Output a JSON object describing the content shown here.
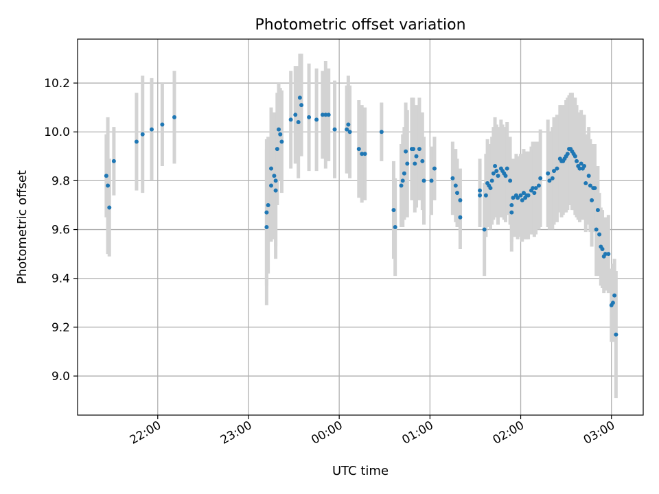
{
  "chart_data": {
    "type": "scatter",
    "title": "Photometric offset variation",
    "xlabel": "UTC time",
    "ylabel": "Photometric offset",
    "x_unit": "hours (UTC, 24h wrap; 00:00 shown as 24.0)",
    "xlim": [
      "21:07",
      "03:21"
    ],
    "ylim": [
      8.84,
      10.38
    ],
    "x_ticks": [
      "22:00",
      "23:00",
      "00:00",
      "01:00",
      "02:00",
      "03:00"
    ],
    "y_ticks": [
      "9.0",
      "9.2",
      "9.4",
      "9.6",
      "9.8",
      "10.0",
      "10.2"
    ],
    "grid": true,
    "colors": {
      "points": "#1f77b4",
      "errorbars": "#d3d3d3",
      "grid": "#b0b0b0"
    },
    "series": [
      {
        "values": [
          [
            "21:26",
            9.82,
            0.17
          ],
          [
            "21:27",
            9.78,
            0.28
          ],
          [
            "21:28",
            9.69,
            0.2
          ],
          [
            "21:31",
            9.88,
            0.14
          ],
          [
            "21:46",
            9.96,
            0.2
          ],
          [
            "21:50",
            9.99,
            0.24
          ],
          [
            "21:56",
            10.01,
            0.21
          ],
          [
            "22:03",
            10.03,
            0.17
          ],
          [
            "22:11",
            10.06,
            0.19
          ],
          [
            "23:12",
            9.61,
            0.32
          ],
          [
            "23:12",
            9.67,
            0.3
          ],
          [
            "23:13",
            9.7,
            0.28
          ],
          [
            "23:15",
            9.85,
            0.25
          ],
          [
            "23:15",
            9.78,
            0.23
          ],
          [
            "23:17",
            9.82,
            0.26
          ],
          [
            "23:18",
            9.8,
            0.27
          ],
          [
            "23:18",
            9.76,
            0.28
          ],
          [
            "23:19",
            9.93,
            0.23
          ],
          [
            "23:20",
            10.01,
            0.19
          ],
          [
            "23:21",
            9.99,
            0.19
          ],
          [
            "23:22",
            9.96,
            0.21
          ],
          [
            "23:28",
            10.05,
            0.2
          ],
          [
            "23:31",
            10.07,
            0.2
          ],
          [
            "23:33",
            10.04,
            0.23
          ],
          [
            "23:34",
            10.14,
            0.18
          ],
          [
            "23:35",
            10.11,
            0.21
          ],
          [
            "23:40",
            10.06,
            0.22
          ],
          [
            "23:45",
            10.05,
            0.21
          ],
          [
            "23:49",
            10.07,
            0.18
          ],
          [
            "23:51",
            10.07,
            0.22
          ],
          [
            "23:53",
            10.07,
            0.19
          ],
          [
            "23:57",
            10.01,
            0.2
          ],
          [
            "00:05",
            10.01,
            0.18
          ],
          [
            "00:06",
            10.03,
            0.2
          ],
          [
            "00:07",
            10.0,
            0.19
          ],
          [
            "00:13",
            9.93,
            0.2
          ],
          [
            "00:15",
            9.91,
            0.2
          ],
          [
            "00:17",
            9.91,
            0.19
          ],
          [
            "00:28",
            10.0,
            0.12
          ],
          [
            "00:36",
            9.68,
            0.2
          ],
          [
            "00:37",
            9.61,
            0.2
          ],
          [
            "00:41",
            9.78,
            0.17
          ],
          [
            "00:42",
            9.8,
            0.19
          ],
          [
            "00:43",
            9.83,
            0.19
          ],
          [
            "00:44",
            9.92,
            0.2
          ],
          [
            "00:45",
            9.87,
            0.22
          ],
          [
            "00:48",
            9.93,
            0.21
          ],
          [
            "00:49",
            9.93,
            0.21
          ],
          [
            "00:50",
            9.87,
            0.2
          ],
          [
            "00:51",
            9.9,
            0.21
          ],
          [
            "00:53",
            9.93,
            0.21
          ],
          [
            "00:55",
            9.88,
            0.2
          ],
          [
            "00:56",
            9.8,
            0.18
          ],
          [
            "01:01",
            9.8,
            0.14
          ],
          [
            "01:03",
            9.85,
            0.13
          ],
          [
            "01:15",
            9.81,
            0.15
          ],
          [
            "01:17",
            9.78,
            0.15
          ],
          [
            "01:18",
            9.75,
            0.14
          ],
          [
            "01:20",
            9.65,
            0.13
          ],
          [
            "01:20",
            9.72,
            0.13
          ],
          [
            "01:33",
            9.76,
            0.13
          ],
          [
            "01:33",
            9.74,
            0.13
          ],
          [
            "01:36",
            9.6,
            0.19
          ],
          [
            "01:37",
            9.74,
            0.17
          ],
          [
            "01:38",
            9.79,
            0.18
          ],
          [
            "01:39",
            9.78,
            0.17
          ],
          [
            "01:40",
            9.77,
            0.17
          ],
          [
            "01:41",
            9.8,
            0.18
          ],
          [
            "01:42",
            9.83,
            0.19
          ],
          [
            "01:43",
            9.86,
            0.2
          ],
          [
            "01:44",
            9.84,
            0.19
          ],
          [
            "01:45",
            9.82,
            0.2
          ],
          [
            "01:47",
            9.85,
            0.2
          ],
          [
            "01:48",
            9.84,
            0.19
          ],
          [
            "01:49",
            9.83,
            0.19
          ],
          [
            "01:50",
            9.82,
            0.19
          ],
          [
            "01:51",
            9.85,
            0.19
          ],
          [
            "01:53",
            9.8,
            0.18
          ],
          [
            "01:54",
            9.67,
            0.16
          ],
          [
            "01:54",
            9.7,
            0.15
          ],
          [
            "01:55",
            9.73,
            0.16
          ],
          [
            "01:57",
            9.74,
            0.17
          ],
          [
            "01:58",
            9.73,
            0.17
          ],
          [
            "02:00",
            9.74,
            0.17
          ],
          [
            "02:01",
            9.72,
            0.17
          ],
          [
            "02:02",
            9.75,
            0.18
          ],
          [
            "02:03",
            9.73,
            0.17
          ],
          [
            "02:04",
            9.74,
            0.18
          ],
          [
            "02:05",
            9.74,
            0.18
          ],
          [
            "02:07",
            9.76,
            0.18
          ],
          [
            "02:08",
            9.77,
            0.19
          ],
          [
            "02:09",
            9.75,
            0.18
          ],
          [
            "02:10",
            9.77,
            0.19
          ],
          [
            "02:12",
            9.78,
            0.18
          ],
          [
            "02:13",
            9.81,
            0.2
          ],
          [
            "02:18",
            9.83,
            0.22
          ],
          [
            "02:19",
            9.8,
            0.2
          ],
          [
            "02:21",
            9.81,
            0.21
          ],
          [
            "02:22",
            9.84,
            0.22
          ],
          [
            "02:24",
            9.85,
            0.22
          ],
          [
            "02:26",
            9.89,
            0.22
          ],
          [
            "02:27",
            9.88,
            0.23
          ],
          [
            "02:28",
            9.88,
            0.22
          ],
          [
            "02:29",
            9.89,
            0.22
          ],
          [
            "02:30",
            9.9,
            0.23
          ],
          [
            "02:31",
            9.91,
            0.23
          ],
          [
            "02:32",
            9.93,
            0.22
          ],
          [
            "02:33",
            9.93,
            0.23
          ],
          [
            "02:34",
            9.92,
            0.24
          ],
          [
            "02:35",
            9.91,
            0.23
          ],
          [
            "02:36",
            9.9,
            0.24
          ],
          [
            "02:37",
            9.88,
            0.23
          ],
          [
            "02:38",
            9.86,
            0.22
          ],
          [
            "02:39",
            9.85,
            0.22
          ],
          [
            "02:40",
            9.87,
            0.22
          ],
          [
            "02:41",
            9.85,
            0.21
          ],
          [
            "02:42",
            9.86,
            0.21
          ],
          [
            "02:43",
            9.79,
            0.2
          ],
          [
            "02:45",
            9.82,
            0.2
          ],
          [
            "02:46",
            9.78,
            0.19
          ],
          [
            "02:47",
            9.72,
            0.19
          ],
          [
            "02:48",
            9.77,
            0.18
          ],
          [
            "02:49",
            9.77,
            0.18
          ],
          [
            "02:50",
            9.6,
            0.19
          ],
          [
            "02:51",
            9.68,
            0.18
          ],
          [
            "02:52",
            9.58,
            0.17
          ],
          [
            "02:53",
            9.53,
            0.16
          ],
          [
            "02:54",
            9.52,
            0.16
          ],
          [
            "02:55",
            9.49,
            0.15
          ],
          [
            "02:56",
            9.5,
            0.15
          ],
          [
            "02:58",
            9.5,
            0.16
          ],
          [
            "03:00",
            9.29,
            0.15
          ],
          [
            "03:01",
            9.3,
            0.16
          ],
          [
            "03:02",
            9.33,
            0.15
          ],
          [
            "03:03",
            9.17,
            0.26
          ]
        ]
      }
    ]
  }
}
